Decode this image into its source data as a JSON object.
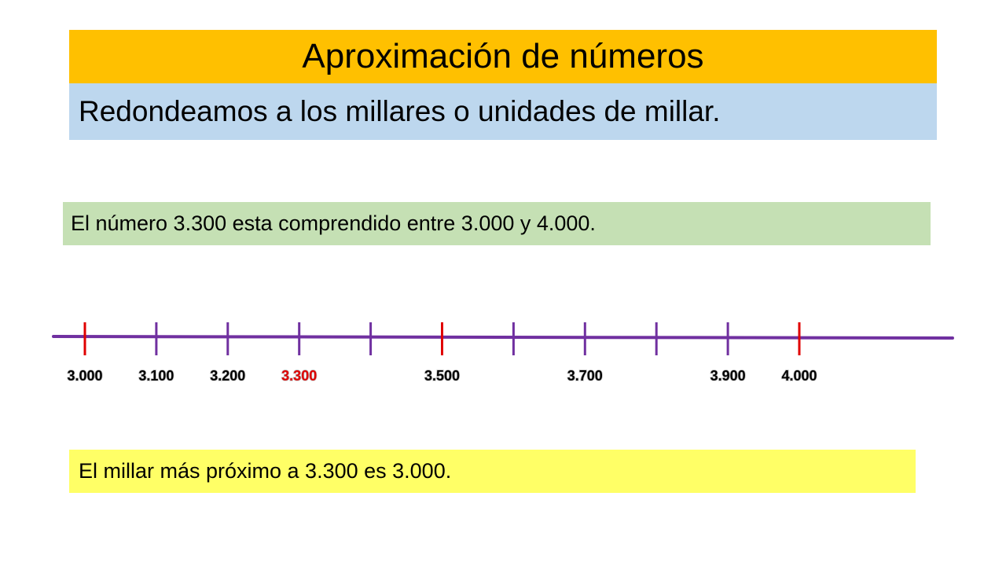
{
  "header": {
    "title": "Aproximación de números",
    "subtitle": "Redondeamos a los millares o unidades de millar."
  },
  "statement": "El número 3.300 esta comprendido entre 3.000 y 4.000.",
  "conclusion": "El millar más próximo a 3.300 es 3.000.",
  "number_line": {
    "line_color": "#7030a0",
    "tick_color_default": "#7030a0",
    "tick_color_highlight": "#e00000",
    "label_color_default": "#000000",
    "label_color_highlight": "#e00000",
    "ticks": [
      {
        "value": 3000,
        "label": "3.000",
        "tick_highlight": true,
        "label_highlight": false
      },
      {
        "value": 3100,
        "label": "3.100",
        "tick_highlight": false,
        "label_highlight": false
      },
      {
        "value": 3200,
        "label": "3.200",
        "tick_highlight": false,
        "label_highlight": false
      },
      {
        "value": 3300,
        "label": "3.300",
        "tick_highlight": false,
        "label_highlight": true
      },
      {
        "value": 3400,
        "label": "",
        "tick_highlight": false,
        "label_highlight": false
      },
      {
        "value": 3500,
        "label": "3.500",
        "tick_highlight": true,
        "label_highlight": false
      },
      {
        "value": 3600,
        "label": "",
        "tick_highlight": false,
        "label_highlight": false
      },
      {
        "value": 3700,
        "label": "3.700",
        "tick_highlight": false,
        "label_highlight": false
      },
      {
        "value": 3800,
        "label": "",
        "tick_highlight": false,
        "label_highlight": false
      },
      {
        "value": 3900,
        "label": "3.900",
        "tick_highlight": false,
        "label_highlight": false
      },
      {
        "value": 4000,
        "label": "4.000",
        "tick_highlight": true,
        "label_highlight": false
      }
    ]
  }
}
